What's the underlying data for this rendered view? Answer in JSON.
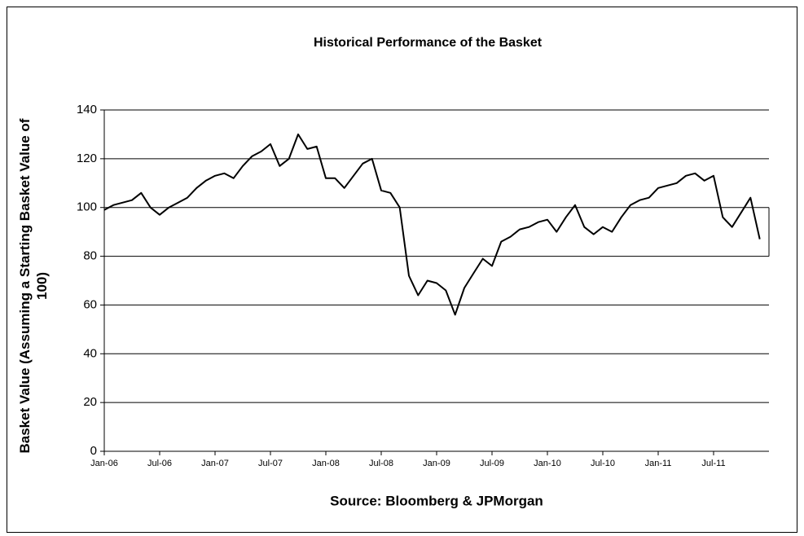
{
  "chart_data": {
    "type": "line",
    "title": "Historical Performance of the Basket",
    "y_label": "Basket Value (Assuming a Starting Basket Value of 100)",
    "x_label": "Source: Bloomberg & JPMorgan",
    "categories": [
      "Jan-06",
      null,
      null,
      null,
      null,
      null,
      "Jul-06",
      null,
      null,
      null,
      null,
      null,
      "Jan-07",
      null,
      null,
      null,
      null,
      null,
      "Jul-07",
      null,
      null,
      null,
      null,
      null,
      "Jan-08",
      null,
      null,
      null,
      null,
      null,
      "Jul-08",
      null,
      null,
      null,
      null,
      null,
      "Jan-09",
      null,
      null,
      null,
      null,
      null,
      "Jul-09",
      null,
      null,
      null,
      null,
      null,
      "Jan-10",
      null,
      null,
      null,
      null,
      null,
      "Jul-10",
      null,
      null,
      null,
      null,
      null,
      "Jan-11",
      null,
      null,
      null,
      null,
      null,
      "Jul-11",
      null,
      null,
      null,
      null,
      null
    ],
    "series": [
      {
        "name": "Basket",
        "color": "#000000",
        "values": [
          99,
          101,
          102,
          103,
          106,
          100,
          97,
          100,
          102,
          104,
          108,
          111,
          113,
          114,
          112,
          117,
          121,
          123,
          126,
          117,
          120,
          130,
          124,
          125,
          112,
          112,
          108,
          113,
          118,
          120,
          107,
          106,
          100,
          72,
          64,
          70,
          69,
          66,
          56,
          67,
          73,
          79,
          76,
          86,
          88,
          91,
          92,
          94,
          95,
          90,
          96,
          101,
          92,
          89,
          92,
          90,
          96,
          101,
          103,
          104,
          108,
          109,
          110,
          113,
          114,
          111,
          113,
          96,
          92,
          98,
          104,
          87
        ]
      }
    ],
    "ylim": [
      0,
      140
    ],
    "yticks": [
      0,
      20,
      40,
      60,
      80,
      100,
      120,
      140
    ],
    "grid": true
  }
}
